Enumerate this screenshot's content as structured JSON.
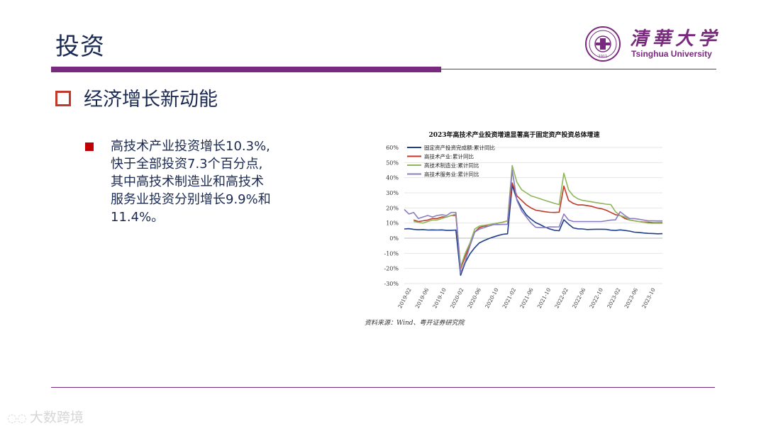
{
  "header": {
    "title": "投资"
  },
  "logo": {
    "name_cn": "清華大学",
    "name_en": "Tsinghua University",
    "seal_text": "1911"
  },
  "section": {
    "title": "经济增长新动能"
  },
  "bullet": {
    "lines": [
      "高技术产业投资增长10.3%,",
      "快于全部投资7.3个百分点,",
      "其中高技术制造业和高技术",
      "服务业投资分别增长9.9%和",
      "11.4%。"
    ]
  },
  "source": "资料来源：Wind、粤开证券研究院",
  "watermark": "大数跨境",
  "colors": {
    "accent": "#7a2a7e",
    "title": "#1b2a52",
    "bullet": "#c00000"
  },
  "chart_data": {
    "type": "line",
    "title": "2023年高技术产业投资增速显著高于固定资产投资总体增速",
    "ylim": [
      -30,
      60
    ],
    "yticks": [
      "-30%",
      "-20%",
      "-10%",
      "0%",
      "10%",
      "20%",
      "30%",
      "40%",
      "50%",
      "60%"
    ],
    "xticks": [
      "2019-02",
      "2019-06",
      "2019-10",
      "2020-02",
      "2020-06",
      "2020-10",
      "2021-02",
      "2021-06",
      "2021-10",
      "2022-02",
      "2022-06",
      "2022-10",
      "2023-02",
      "2023-06",
      "2023-10"
    ],
    "legend_position": "top-left",
    "series": [
      {
        "name": "固定资产投资完成额:累计同比",
        "color": "#1f3f8a",
        "values": [
          6.1,
          6.3,
          5.8,
          5.6,
          5.7,
          5.4,
          5.5,
          5.4,
          5.5,
          5.2,
          5.2,
          5.4,
          -24.5,
          -16.1,
          -10.3,
          -6.3,
          -3.1,
          -1.6,
          -0.3,
          0.8,
          1.8,
          2.6,
          2.9,
          35.0,
          25.6,
          19.9,
          15.4,
          12.6,
          10.3,
          8.9,
          7.3,
          6.1,
          5.2,
          4.9,
          12.2,
          9.3,
          6.8,
          6.2,
          6.1,
          5.7,
          5.8,
          5.9,
          5.9,
          5.8,
          5.3,
          5.1,
          5.5,
          5.1,
          4.7,
          4.0,
          3.8,
          3.4,
          3.2,
          3.1,
          2.9,
          3.0
        ]
      },
      {
        "name": "高技术产业:累计同比",
        "color": "#c0392b",
        "values": [
          null,
          null,
          12,
          11,
          11.5,
          12,
          13,
          13,
          14,
          14,
          15,
          15,
          -20,
          -12,
          -4,
          4,
          7,
          8,
          8,
          9,
          10,
          10.6,
          11.5,
          36.5,
          28,
          25,
          22,
          20,
          18.5,
          18,
          17.5,
          17.1,
          17,
          17.2,
          34.5,
          25,
          23,
          22,
          22,
          21.5,
          21,
          20,
          19.5,
          18.5,
          17,
          15.5,
          15,
          13,
          12,
          11.5,
          11,
          10.7,
          10.5,
          10.3,
          10.2,
          10.3
        ]
      },
      {
        "name": "高技术制造业:累计同比",
        "color": "#8fb65a",
        "values": [
          null,
          null,
          11,
          10.5,
          10,
          11,
          12,
          12,
          13,
          14,
          15,
          16,
          -19,
          -10,
          -3,
          6,
          8,
          8.5,
          9,
          9.5,
          10,
          10.5,
          11.5,
          48,
          37,
          32,
          30,
          28,
          27,
          26,
          25,
          24,
          23,
          22.2,
          43,
          32,
          28,
          26,
          25,
          24.5,
          24,
          23.5,
          23,
          22.5,
          22.2,
          17.5,
          15,
          14,
          12,
          11.5,
          11,
          10.5,
          10,
          9.9,
          9.9,
          9.9
        ]
      },
      {
        "name": "高技术服务业:累计同比",
        "color": "#8a7cc0",
        "values": [
          19,
          16,
          17,
          13,
          14,
          15,
          14,
          15,
          15.5,
          15,
          17,
          17,
          -23,
          -15,
          -5,
          4,
          6,
          7,
          8,
          9,
          9,
          9.1,
          9.2,
          45,
          25,
          18,
          14,
          10,
          7.2,
          7,
          7,
          7.5,
          7.4,
          7.5,
          16,
          12,
          11,
          11,
          11,
          11,
          11,
          11,
          11,
          11.5,
          12,
          12.1,
          17.5,
          15,
          13,
          13,
          12.5,
          12,
          11.5,
          11.5,
          11.4,
          11.4
        ]
      }
    ]
  }
}
